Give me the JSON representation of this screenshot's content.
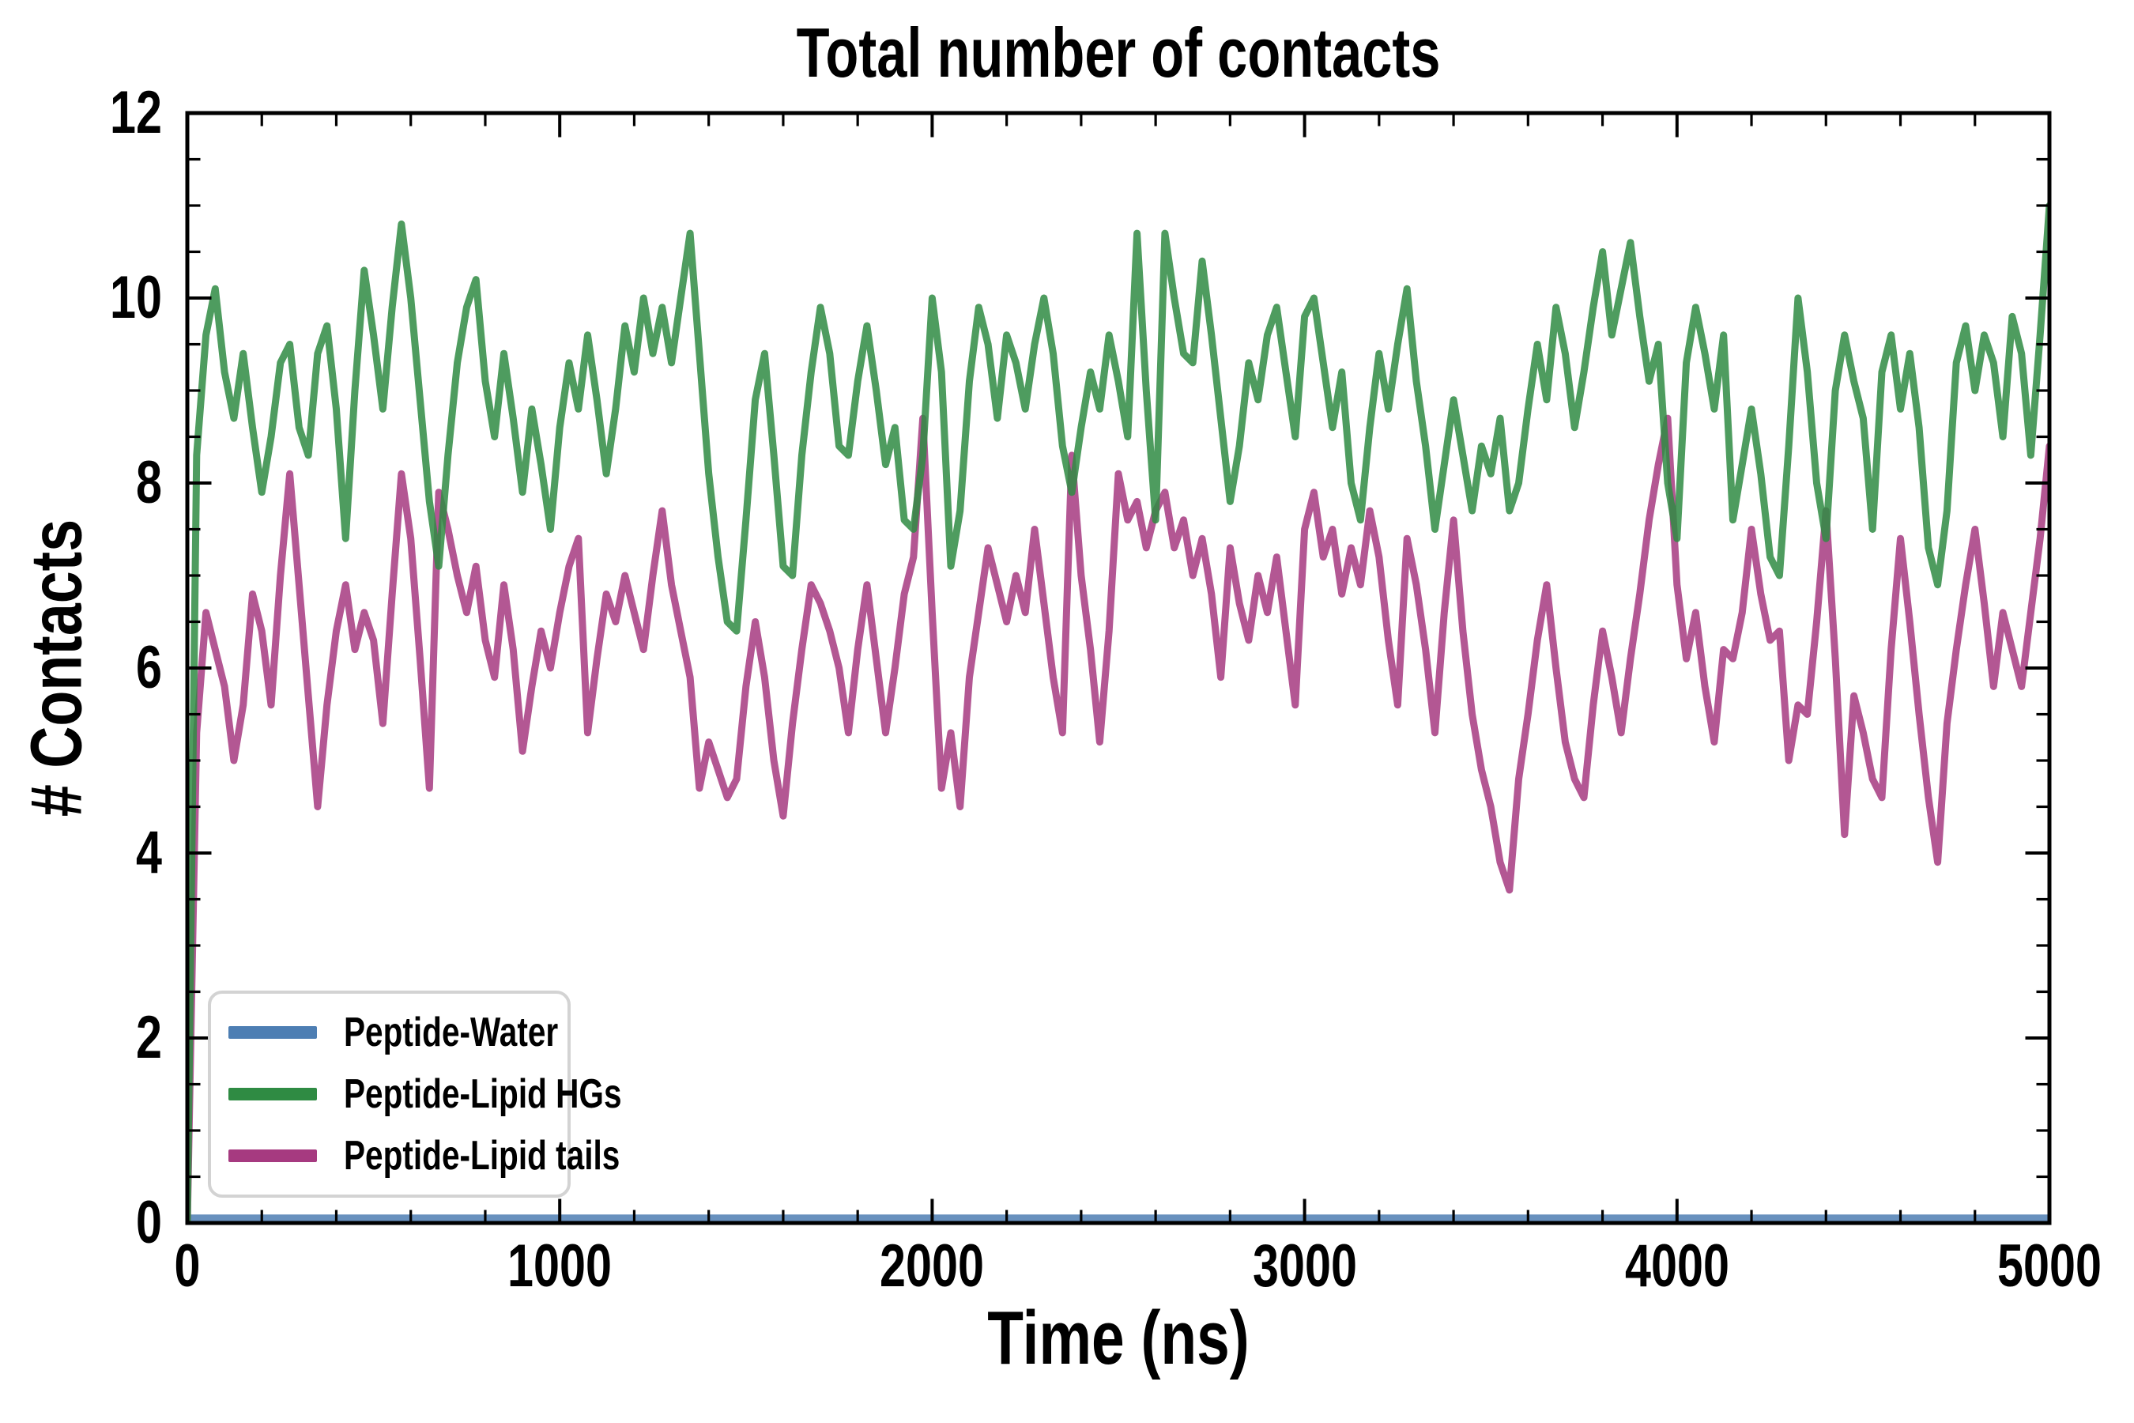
{
  "header": {
    "title": "Total number of contacts"
  },
  "axes": {
    "xlabel": "Time (ns)",
    "ylabel": "# Contacts",
    "x_ticks": {
      "major": [
        0,
        1000,
        2000,
        3000,
        4000,
        5000
      ],
      "labels": [
        "0",
        "1000",
        "2000",
        "3000",
        "4000",
        "5000"
      ],
      "minor_step": 200
    },
    "y_ticks": {
      "major": [
        0,
        2,
        4,
        6,
        8,
        10,
        12
      ],
      "labels": [
        "0",
        "2",
        "4",
        "6",
        "8",
        "10",
        "12"
      ],
      "minor_step": 0.5
    },
    "spine_color": "#000000",
    "background": "#ffffff"
  },
  "legend": {
    "items": [
      {
        "label": "Peptide-Water",
        "color": "#4d7eb3"
      },
      {
        "label": "Peptide-Lipid HGs",
        "color": "#2f8b43"
      },
      {
        "label": "Peptide-Lipid tails",
        "color": "#a63a80"
      }
    ],
    "border_color": "#d3d3d3",
    "position": "lower left"
  },
  "chart_data": {
    "type": "line",
    "title": "Total number of contacts",
    "xlabel": "Time (ns)",
    "ylabel": "# Contacts",
    "xlim": [
      0,
      5000
    ],
    "ylim": [
      0,
      12
    ],
    "grid": false,
    "legend_position": "lower left",
    "line_alpha": 0.85,
    "series": [
      {
        "name": "Peptide-Water",
        "color": "#4d7eb3",
        "stroke_width": 10,
        "x": [
          0,
          5000
        ],
        "values": [
          0.05,
          0.05
        ]
      },
      {
        "name": "Peptide-Lipid tails",
        "color": "#a63a80",
        "stroke_width": 9,
        "x_start": 0,
        "x_step": 25,
        "values": [
          0.0,
          5.3,
          6.6,
          6.2,
          5.8,
          5.0,
          5.6,
          6.8,
          6.4,
          5.6,
          7.0,
          8.1,
          6.9,
          5.7,
          4.5,
          5.6,
          6.4,
          6.9,
          6.2,
          6.6,
          6.3,
          5.4,
          6.8,
          8.1,
          7.4,
          6.1,
          4.7,
          7.9,
          7.5,
          7.0,
          6.6,
          7.1,
          6.3,
          5.9,
          6.9,
          6.2,
          5.1,
          5.8,
          6.4,
          6.0,
          6.6,
          7.1,
          7.4,
          5.3,
          6.1,
          6.8,
          6.5,
          7.0,
          6.6,
          6.2,
          7.0,
          7.7,
          6.9,
          6.4,
          5.9,
          4.7,
          5.2,
          4.9,
          4.6,
          4.8,
          5.8,
          6.5,
          5.9,
          5.0,
          4.4,
          5.4,
          6.2,
          6.9,
          6.7,
          6.4,
          6.0,
          5.3,
          6.2,
          6.9,
          6.1,
          5.3,
          6.0,
          6.8,
          7.2,
          8.7,
          6.6,
          4.7,
          5.3,
          4.5,
          5.9,
          6.6,
          7.3,
          6.9,
          6.5,
          7.0,
          6.6,
          7.5,
          6.7,
          5.9,
          5.3,
          8.3,
          7.0,
          6.2,
          5.2,
          6.4,
          8.1,
          7.6,
          7.8,
          7.3,
          7.7,
          7.9,
          7.3,
          7.6,
          7.0,
          7.4,
          6.8,
          5.9,
          7.3,
          6.7,
          6.3,
          7.0,
          6.6,
          7.2,
          6.4,
          5.6,
          7.5,
          7.9,
          7.2,
          7.5,
          6.8,
          7.3,
          6.9,
          7.7,
          7.2,
          6.3,
          5.6,
          7.4,
          6.9,
          6.2,
          5.3,
          6.6,
          7.6,
          6.4,
          5.5,
          4.9,
          4.5,
          3.9,
          3.6,
          4.8,
          5.5,
          6.3,
          6.9,
          6.0,
          5.2,
          4.8,
          4.6,
          5.6,
          6.4,
          5.9,
          5.3,
          6.1,
          6.8,
          7.6,
          8.2,
          8.7,
          6.9,
          6.1,
          6.6,
          5.8,
          5.2,
          6.2,
          6.1,
          6.6,
          7.5,
          6.8,
          6.3,
          6.4,
          5.0,
          5.6,
          5.5,
          6.5,
          7.7,
          6.1,
          4.2,
          5.7,
          5.3,
          4.8,
          4.6,
          6.2,
          7.4,
          6.5,
          5.5,
          4.6,
          3.9,
          5.4,
          6.2,
          6.9,
          7.5,
          6.7,
          5.8,
          6.6,
          6.2,
          5.8,
          6.6,
          7.4,
          8.4
        ]
      },
      {
        "name": "Peptide-Lipid HGs",
        "color": "#2f8b43",
        "stroke_width": 9,
        "x_start": 0,
        "x_step": 25,
        "values": [
          0.0,
          8.3,
          9.6,
          10.1,
          9.2,
          8.7,
          9.4,
          8.6,
          7.9,
          8.5,
          9.3,
          9.5,
          8.6,
          8.3,
          9.4,
          9.7,
          8.8,
          7.4,
          9.0,
          10.3,
          9.6,
          8.8,
          9.9,
          10.8,
          10.0,
          8.9,
          7.8,
          7.1,
          8.3,
          9.3,
          9.9,
          10.2,
          9.1,
          8.5,
          9.4,
          8.7,
          7.9,
          8.8,
          8.2,
          7.5,
          8.6,
          9.3,
          8.8,
          9.6,
          8.9,
          8.1,
          8.8,
          9.7,
          9.2,
          10.0,
          9.4,
          9.9,
          9.3,
          10.0,
          10.7,
          9.4,
          8.1,
          7.2,
          6.5,
          6.4,
          7.6,
          8.9,
          9.4,
          8.3,
          7.1,
          7.0,
          8.3,
          9.2,
          9.9,
          9.4,
          8.4,
          8.3,
          9.1,
          9.7,
          9.0,
          8.2,
          8.6,
          7.6,
          7.5,
          8.3,
          10.0,
          9.2,
          7.1,
          7.7,
          9.1,
          9.9,
          9.5,
          8.7,
          9.6,
          9.3,
          8.8,
          9.5,
          10.0,
          9.4,
          8.4,
          7.9,
          8.6,
          9.2,
          8.8,
          9.6,
          9.1,
          8.5,
          10.7,
          9.0,
          7.6,
          10.7,
          10.0,
          9.4,
          9.3,
          10.4,
          9.6,
          8.7,
          7.8,
          8.4,
          9.3,
          8.9,
          9.6,
          9.9,
          9.2,
          8.5,
          9.8,
          10.0,
          9.3,
          8.6,
          9.2,
          8.0,
          7.6,
          8.6,
          9.4,
          8.8,
          9.5,
          10.1,
          9.1,
          8.4,
          7.5,
          8.2,
          8.9,
          8.3,
          7.7,
          8.4,
          8.1,
          8.7,
          7.7,
          8.0,
          8.8,
          9.5,
          8.9,
          9.9,
          9.4,
          8.6,
          9.2,
          9.9,
          10.5,
          9.6,
          10.1,
          10.6,
          9.8,
          9.1,
          9.5,
          8.0,
          7.4,
          9.3,
          9.9,
          9.4,
          8.8,
          9.6,
          7.6,
          8.2,
          8.8,
          8.1,
          7.2,
          7.0,
          8.4,
          10.0,
          9.2,
          8.0,
          7.4,
          9.0,
          9.6,
          9.1,
          8.7,
          7.5,
          9.2,
          9.6,
          8.8,
          9.4,
          8.6,
          7.3,
          6.9,
          7.7,
          9.3,
          9.7,
          9.0,
          9.6,
          9.3,
          8.5,
          9.8,
          9.4,
          8.3,
          9.6,
          11.0
        ]
      }
    ]
  }
}
